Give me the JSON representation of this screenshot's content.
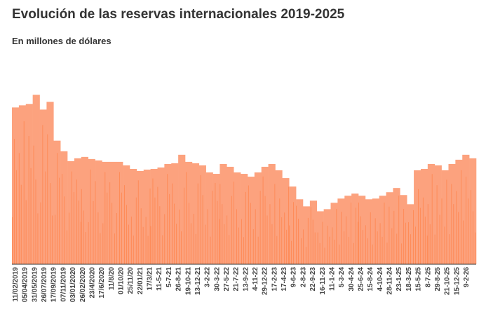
{
  "chart_data": {
    "type": "bar",
    "title": "Evolución de las reservas internacionales 2019-2025",
    "subtitle": "En millones de dólares",
    "xlabel": "",
    "ylabel": "",
    "grid": false,
    "legend": "none",
    "colors": {
      "fill": "#fca27e",
      "stripe": "#ff7a3d",
      "axis": "#333333"
    },
    "ylim": [
      0,
      265
    ],
    "tick_labels": [
      "11/02/2019",
      "05/04/2019",
      "31/05/2019",
      "26/07/2019",
      "17/09/2019",
      "07/11/2019",
      "03/01/2020",
      "26/02/2020",
      "23/4/2020",
      "17/6/2020",
      "11/8/20",
      "01/10/20",
      "25/11/20",
      "22/01/21",
      "17/3/21",
      "11-5-21",
      "5-7-21",
      "26-8-21",
      "19-10-21",
      "13-12-21",
      "3-2-22",
      "30-3-22",
      "27-5-22",
      "21-7-22",
      "13-9-22",
      "4-11-22",
      "29-12-22",
      "17-2-23",
      "17-4-23",
      "9-6-23",
      "2-8-23",
      "22-9-23",
      "16-11-23",
      "11-1-24",
      "5-3-24",
      "30-4-24",
      "25-6-24",
      "15-8-24",
      "4-10-24",
      "28-11-24",
      "23-1-25",
      "18-3-25",
      "15-5-25",
      "8-7-25",
      "29-8-25",
      "21-10-25",
      "15-12-25",
      "9-2-26"
    ],
    "values": [
      222,
      225,
      227,
      240,
      219,
      230,
      175,
      160,
      146,
      150,
      152,
      149,
      147,
      145,
      145,
      145,
      140,
      135,
      132,
      134,
      135,
      137,
      142,
      143,
      155,
      145,
      143,
      140,
      130,
      128,
      142,
      138,
      130,
      128,
      124,
      130,
      138,
      142,
      133,
      122,
      110,
      92,
      82,
      90,
      75,
      78,
      87,
      93,
      97,
      100,
      97,
      92,
      93,
      97,
      102,
      108,
      98,
      85,
      133,
      135,
      142,
      140,
      133,
      142,
      148,
      155,
      150
    ]
  }
}
